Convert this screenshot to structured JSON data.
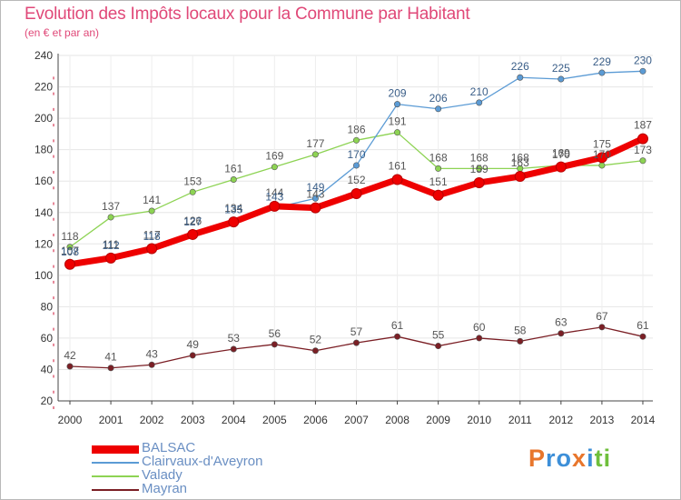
{
  "header": {
    "title": "Evolution des Impôts locaux pour la Commune par Habitant",
    "subtitle": "(en € et par an)"
  },
  "brand": {
    "name": "Proxiti",
    "letter_colors": [
      "#e8762c",
      "#3d8fd8",
      "#3d8fd8",
      "#e8762c",
      "#3d8fd8",
      "#6fbf3c",
      "#6fbf3c"
    ]
  },
  "chart_data": {
    "type": "line",
    "title": "Evolution des Impôts locaux pour la Commune par Habitant",
    "subtitle": "(en € et par an)",
    "xlabel": "",
    "ylabel": "",
    "categories": [
      "2000",
      "2001",
      "2002",
      "2003",
      "2004",
      "2005",
      "2006",
      "2007",
      "2008",
      "2009",
      "2010",
      "2011",
      "2012",
      "2013",
      "2014"
    ],
    "ylim": [
      20,
      240
    ],
    "yticks": [
      20,
      40,
      60,
      80,
      100,
      120,
      140,
      160,
      180,
      200,
      220,
      240
    ],
    "grid": true,
    "legend_position": "bottom-left",
    "series": [
      {
        "name": "BALSAC",
        "color": "#ee0000",
        "values": [
          107,
          111,
          117,
          126,
          134,
          144,
          143,
          152,
          161,
          151,
          159,
          163,
          169,
          175,
          187
        ]
      },
      {
        "name": "Clairvaux-d'Aveyron",
        "color": "#5b9bd5",
        "values": [
          108,
          112,
          118,
          127,
          135,
          143,
          149,
          170,
          209,
          206,
          210,
          226,
          225,
          229,
          230
        ]
      },
      {
        "name": "Valady",
        "color": "#8dd353",
        "values": [
          118,
          137,
          141,
          153,
          161,
          169,
          177,
          186,
          191,
          168,
          168,
          168,
          170,
          170,
          173
        ]
      },
      {
        "name": "Mayran",
        "color": "#7b1f25",
        "values": [
          42,
          41,
          43,
          49,
          53,
          56,
          52,
          57,
          61,
          55,
          60,
          58,
          63,
          67,
          61
        ]
      }
    ]
  }
}
